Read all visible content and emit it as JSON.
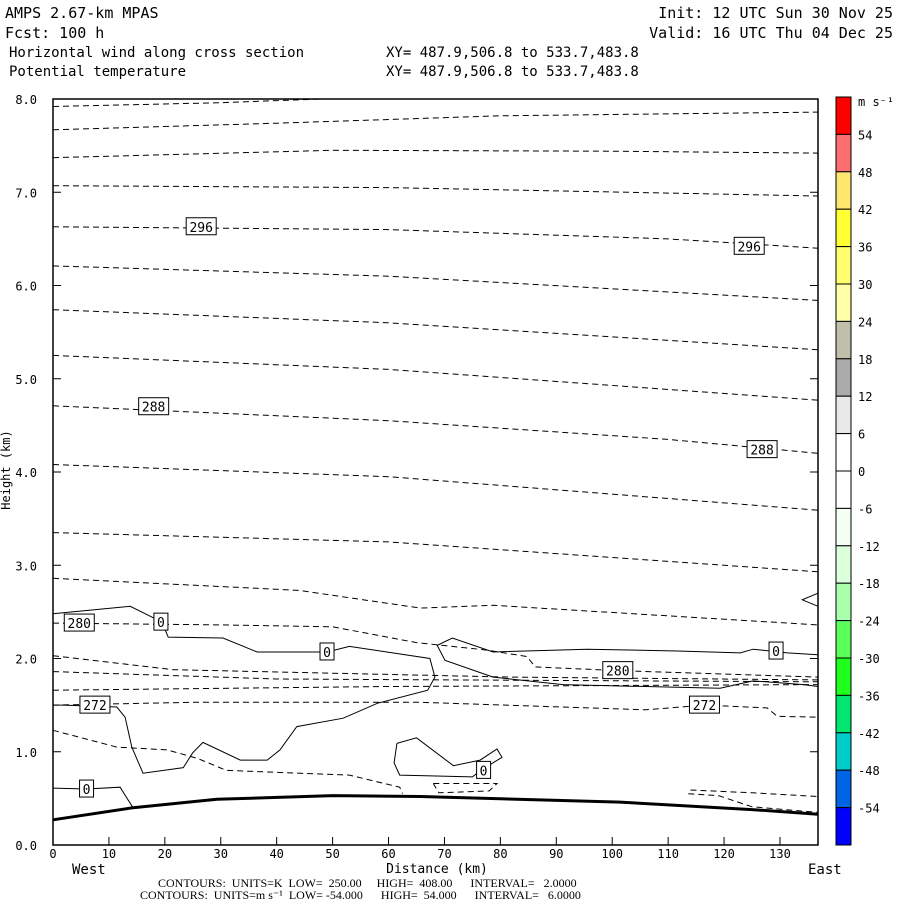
{
  "header": {
    "model": "AMPS 2.67-km MPAS",
    "fcst": "Fcst:  100 h",
    "init": "Init: 12 UTC Sun 30 Nov 25",
    "valid": "Valid: 16 UTC Thu 04 Dec 25",
    "field1": "Horizontal wind along cross section",
    "field1_xy": "XY= 487.9,506.8 to 533.7,483.8",
    "field2": "Potential temperature",
    "field2_xy": "XY= 487.9,506.8 to 533.7,483.8"
  },
  "footer": {
    "west": "West",
    "east": "East",
    "contours_theta": "CONTOURS:  UNITS=K  LOW=  250.00     HIGH=  408.00      INTERVAL=   2.0000",
    "contours_wind": "CONTOURS:  UNITS=m s⁻¹  LOW= -54.000      HIGH=  54.000      INTERVAL=   6.0000"
  },
  "chart_data": {
    "type": "contour-cross-section",
    "xlabel": "Distance (km)",
    "ylabel": "Height (km)",
    "xlim": [
      0,
      136.8
    ],
    "ylim": [
      0,
      8
    ],
    "xticks": [
      "0",
      "10",
      "20",
      "30",
      "40",
      "50",
      "60",
      "70",
      "80",
      "90",
      "100",
      "110",
      "120",
      "130"
    ],
    "yticks": [
      "0.0",
      "1.0",
      "2.0",
      "3.0",
      "4.0",
      "5.0",
      "6.0",
      "7.0",
      "8.0"
    ],
    "colorbar": {
      "unit": "m s⁻¹",
      "labels": [
        "54",
        "48",
        "42",
        "36",
        "30",
        "24",
        "18",
        "12",
        "6",
        "0",
        "-6",
        "-12",
        "-18",
        "-24",
        "-30",
        "-36",
        "-42",
        "-48",
        "-54"
      ],
      "colors": [
        "#ff0000",
        "#ff6e6e",
        "#ffe66e",
        "#ffff32",
        "#ffff6e",
        "#ffffaa",
        "#c0c0aa",
        "#aaaaaa",
        "#e8e8e8",
        "#ffffff",
        "#ffffff",
        "#f2fff2",
        "#dcffdc",
        "#aaffaa",
        "#5aff5a",
        "#1eff1e",
        "#00e66e",
        "#00cccc",
        "#0064e6",
        "#0000ff"
      ]
    },
    "terrain": [
      [
        0,
        0.27
      ],
      [
        14.3,
        0.4
      ],
      [
        29.3,
        0.49
      ],
      [
        50,
        0.53
      ],
      [
        65.7,
        0.52
      ],
      [
        101.4,
        0.46
      ],
      [
        125,
        0.38
      ],
      [
        136.8,
        0.33
      ]
    ],
    "theta_contours": [
      {
        "pts": [
          [
            0,
            7.92
          ],
          [
            30,
            7.96
          ],
          [
            48,
            8.0
          ]
        ]
      },
      {
        "pts": [
          [
            0,
            7.67
          ],
          [
            40,
            7.74
          ],
          [
            80,
            7.82
          ],
          [
            136.8,
            7.86
          ]
        ]
      },
      {
        "pts": [
          [
            0,
            7.37
          ],
          [
            50,
            7.45
          ],
          [
            100,
            7.44
          ],
          [
            136.8,
            7.42
          ]
        ]
      },
      {
        "pts": [
          [
            0,
            7.07
          ],
          [
            60,
            7.05
          ],
          [
            136.8,
            6.96
          ]
        ]
      },
      {
        "pts": [
          [
            0,
            6.63
          ],
          [
            60,
            6.6
          ],
          [
            110,
            6.5
          ],
          [
            136.8,
            6.4
          ]
        ],
        "label": "296",
        "at": [
          [
            26.5,
            6.63
          ],
          [
            124.5,
            6.42
          ]
        ]
      },
      {
        "pts": [
          [
            0,
            6.21
          ],
          [
            60,
            6.1
          ],
          [
            136.8,
            5.84
          ]
        ]
      },
      {
        "pts": [
          [
            0,
            5.74
          ],
          [
            60,
            5.6
          ],
          [
            136.8,
            5.31
          ]
        ]
      },
      {
        "pts": [
          [
            0,
            5.25
          ],
          [
            60,
            5.1
          ],
          [
            136.8,
            4.77
          ]
        ]
      },
      {
        "pts": [
          [
            0,
            4.71
          ],
          [
            60,
            4.55
          ],
          [
            110,
            4.35
          ],
          [
            136.8,
            4.2
          ]
        ],
        "label": "288",
        "at": [
          [
            18,
            4.7
          ],
          [
            126.8,
            4.24
          ]
        ]
      },
      {
        "pts": [
          [
            0,
            4.08
          ],
          [
            60,
            3.95
          ],
          [
            136.8,
            3.59
          ]
        ]
      },
      {
        "pts": [
          [
            0,
            3.35
          ],
          [
            60,
            3.25
          ],
          [
            136.8,
            2.93
          ]
        ]
      },
      {
        "pts": [
          [
            0,
            2.86
          ],
          [
            44,
            2.73
          ],
          [
            65.7,
            2.54
          ],
          [
            78.7,
            2.57
          ],
          [
            136.8,
            2.36
          ]
        ]
      },
      {
        "pts": [
          [
            0,
            2.38
          ],
          [
            30,
            2.36
          ],
          [
            50,
            2.34
          ],
          [
            65,
            2.17
          ],
          [
            77.6,
            2.09
          ],
          [
            84.8,
            2.02
          ],
          [
            86.2,
            1.91
          ],
          [
            101,
            1.87
          ],
          [
            136.8,
            1.8
          ]
        ],
        "label": "280",
        "at": [
          [
            4.7,
            2.38
          ],
          [
            101,
            1.87
          ]
        ]
      },
      {
        "pts": [
          [
            0,
            2.03
          ],
          [
            21.5,
            1.88
          ],
          [
            81.8,
            1.8
          ],
          [
            136.8,
            1.77
          ]
        ]
      },
      {
        "pts": [
          [
            0,
            1.86
          ],
          [
            40,
            1.78
          ],
          [
            136.8,
            1.75
          ]
        ]
      },
      {
        "pts": [
          [
            0,
            1.66
          ],
          [
            60,
            1.7
          ],
          [
            136.8,
            1.72
          ]
        ]
      },
      {
        "pts": [
          [
            0,
            1.5
          ],
          [
            25,
            1.53
          ],
          [
            65.7,
            1.53
          ],
          [
            106,
            1.45
          ],
          [
            116.5,
            1.5
          ],
          [
            127.7,
            1.47
          ],
          [
            129.5,
            1.38
          ],
          [
            136.8,
            1.37
          ]
        ],
        "label": "272",
        "at": [
          [
            7.5,
            1.5
          ],
          [
            116.5,
            1.5
          ]
        ]
      },
      {
        "pts": [
          [
            0,
            1.23
          ],
          [
            11.4,
            1.05
          ],
          [
            20.4,
            1.02
          ],
          [
            25.8,
            0.93
          ],
          [
            31,
            0.8
          ],
          [
            53,
            0.75
          ],
          [
            62,
            0.62
          ],
          [
            62.5,
            0.55
          ]
        ]
      },
      {
        "pts": [
          [
            68,
            0.66
          ],
          [
            79.4,
            0.66
          ],
          [
            78,
            0.58
          ],
          [
            69,
            0.56
          ],
          [
            68,
            0.66
          ]
        ]
      },
      {
        "pts": [
          [
            114,
            0.59
          ],
          [
            125,
            0.56
          ],
          [
            136.8,
            0.52
          ]
        ]
      },
      {
        "pts": [
          [
            113.6,
            0.55
          ],
          [
            119,
            0.53
          ],
          [
            125,
            0.41
          ],
          [
            136.8,
            0.35
          ]
        ]
      }
    ],
    "wind_contours": [
      {
        "pts": [
          [
            0,
            2.48
          ],
          [
            13.8,
            2.56
          ],
          [
            19.5,
            2.39
          ],
          [
            20.6,
            2.23
          ],
          [
            30.4,
            2.22
          ],
          [
            36.5,
            2.07
          ],
          [
            49,
            2.07
          ],
          [
            53,
            2.13
          ],
          [
            67.4,
            2.0
          ],
          [
            68.3,
            1.8
          ],
          [
            67,
            1.66
          ],
          [
            58,
            1.52
          ],
          [
            51.9,
            1.36
          ],
          [
            43.6,
            1.27
          ],
          [
            40.6,
            1.02
          ],
          [
            38.3,
            0.91
          ],
          [
            33.5,
            0.91
          ],
          [
            26.8,
            1.1
          ],
          [
            25,
            0.99
          ],
          [
            23.3,
            0.83
          ],
          [
            16.1,
            0.77
          ],
          [
            14.1,
            1.05
          ],
          [
            12.9,
            1.37
          ],
          [
            11.4,
            1.48
          ],
          [
            1.8,
            1.5
          ],
          [
            0,
            1.5
          ]
        ],
        "label": "0",
        "at": [
          [
            19.3,
            2.39
          ],
          [
            49,
            2.07
          ]
        ]
      },
      {
        "pts": [
          [
            0,
            0.61
          ],
          [
            6,
            0.6
          ],
          [
            12,
            0.62
          ],
          [
            14.3,
            0.4
          ]
        ],
        "label": "0",
        "at": [
          [
            6,
            0.6
          ]
        ]
      },
      {
        "pts": [
          [
            61.5,
            1.09
          ],
          [
            65,
            1.15
          ],
          [
            71.6,
            0.85
          ],
          [
            76.4,
            0.91
          ],
          [
            79.4,
            1.03
          ],
          [
            80.3,
            0.94
          ],
          [
            76.5,
            0.8
          ],
          [
            75,
            0.73
          ],
          [
            62,
            0.75
          ],
          [
            61,
            0.88
          ],
          [
            61.5,
            1.09
          ]
        ],
        "label": "0",
        "at": [
          [
            77,
            0.8
          ]
        ]
      },
      {
        "pts": [
          [
            136.8,
            2.04
          ],
          [
            131.3,
            2.06
          ],
          [
            125.2,
            2.1
          ],
          [
            122.9,
            2.06
          ],
          [
            111.6,
            2.08
          ],
          [
            95.5,
            2.1
          ],
          [
            78.7,
            2.07
          ],
          [
            71.4,
            2.22
          ],
          [
            68.7,
            2.14
          ],
          [
            70.1,
            1.98
          ],
          [
            78.7,
            1.8
          ],
          [
            91.2,
            1.72
          ],
          [
            119.3,
            1.68
          ],
          [
            125.2,
            1.76
          ],
          [
            134.2,
            1.72
          ],
          [
            136.8,
            1.7
          ]
        ],
        "label": "0",
        "at": [
          [
            129.3,
            2.08
          ]
        ]
      },
      {
        "pts": [
          [
            136.8,
            2.7
          ],
          [
            134,
            2.63
          ],
          [
            136.8,
            2.56
          ]
        ]
      }
    ]
  }
}
